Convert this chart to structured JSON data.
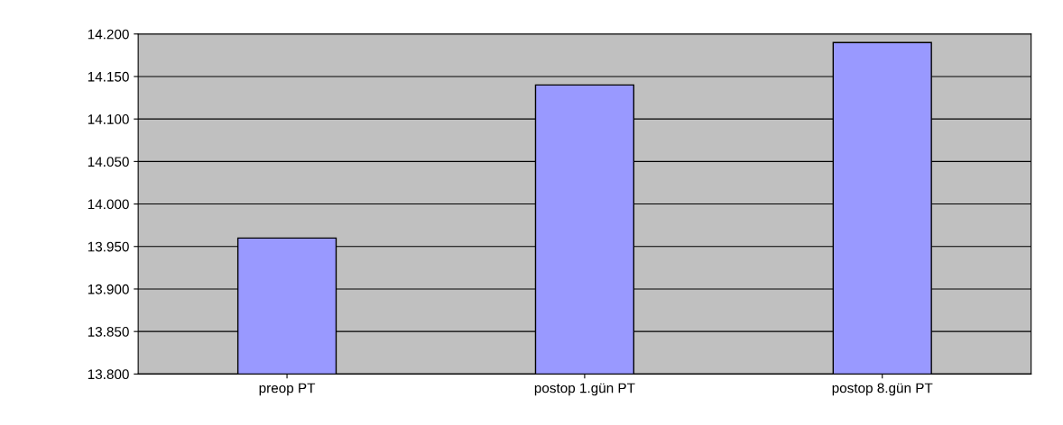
{
  "chart_data": {
    "type": "bar",
    "categories": [
      "preop PT",
      "postop 1.gün PT",
      "postop 8.gün PT"
    ],
    "values": [
      13.96,
      14.14,
      14.19
    ],
    "color": "#9999ff",
    "ylim": [
      13.8,
      14.2
    ],
    "yticks": [
      {
        "value": 13.8,
        "label": "13.800"
      },
      {
        "value": 13.85,
        "label": "13.850"
      },
      {
        "value": 13.9,
        "label": "13.900"
      },
      {
        "value": 13.95,
        "label": "13.950"
      },
      {
        "value": 14.0,
        "label": "14.000"
      },
      {
        "value": 14.05,
        "label": "14.050"
      },
      {
        "value": 14.1,
        "label": "14.100"
      },
      {
        "value": 14.15,
        "label": "14.150"
      },
      {
        "value": 14.2,
        "label": "14.200"
      }
    ],
    "grid": "y",
    "legend": false
  }
}
